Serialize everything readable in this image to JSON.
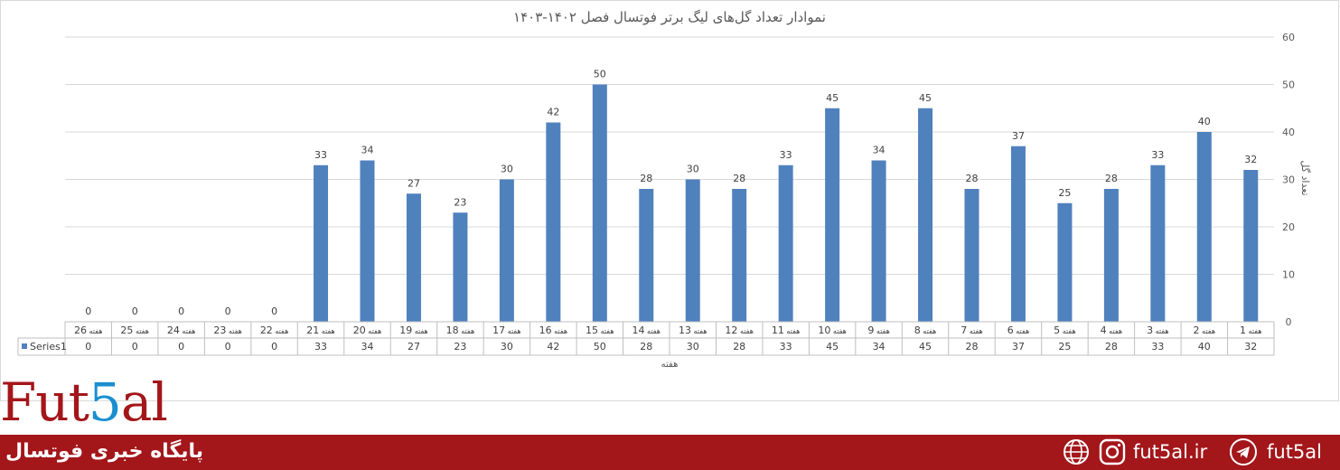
{
  "chart_data": {
    "type": "bar",
    "title": "نموادار تعداد گل‌های لیگ برتر فوتسال فصل ۱۴۰۲-۱۴۰۳",
    "xlabel": "هفته",
    "ylabel": "تعداد گل",
    "ylim": [
      0,
      60
    ],
    "yticks": [
      0,
      10,
      20,
      30,
      40,
      50,
      60
    ],
    "axis_side": "right",
    "x_order": "reversed",
    "grid": true,
    "data_table": true,
    "bar_color": "#4f81bd",
    "categories": [
      "هفته 1",
      "هفته 2",
      "هفته 3",
      "هفته 4",
      "هفته 5",
      "هفته 6",
      "هفته 7",
      "هفته 8",
      "هفته 9",
      "هفته 10",
      "هفته 11",
      "هفته 12",
      "هفته 13",
      "هفته 14",
      "هفته 15",
      "هفته 16",
      "هفته 17",
      "هفته 18",
      "هفته 19",
      "هفته 20",
      "هفته 21",
      "هفته 22",
      "هفته 23",
      "هفته 24",
      "هفته 25",
      "هفته 26"
    ],
    "series": [
      {
        "name": "Series1",
        "values": [
          32,
          40,
          33,
          28,
          25,
          37,
          28,
          45,
          34,
          45,
          33,
          28,
          30,
          28,
          50,
          42,
          30,
          23,
          27,
          34,
          33,
          0,
          0,
          0,
          0,
          0
        ]
      }
    ]
  },
  "footer": {
    "bg_color": "#a3161a",
    "tagline": "پایگاه خبری فوتسال",
    "website": "fut5al.ir",
    "telegram": "fut5al",
    "icons": [
      "globe-icon",
      "instagram-icon",
      "telegram-icon"
    ]
  },
  "logo": {
    "part1": "Fut",
    "part2": "5",
    "part3": "al"
  }
}
